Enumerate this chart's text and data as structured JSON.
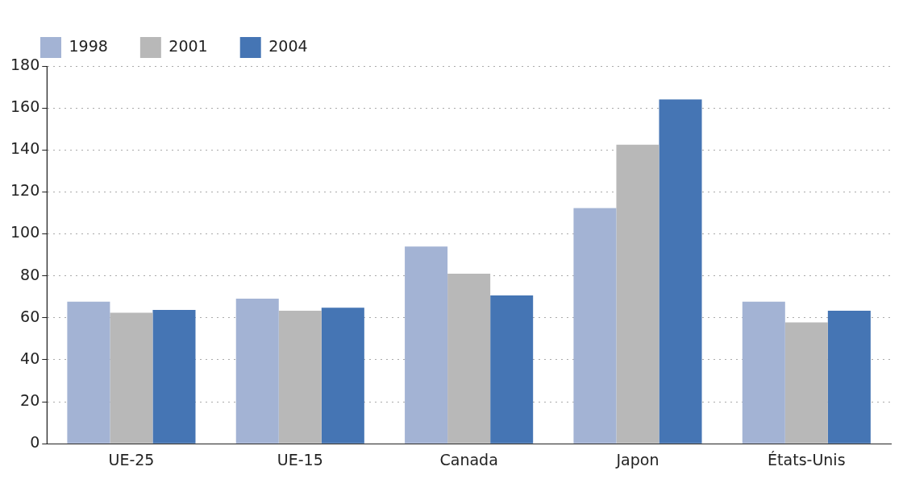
{
  "chart_data": {
    "type": "bar",
    "categories": [
      "UE-25",
      "UE-15",
      "Canada",
      "Japon",
      "États-Unis"
    ],
    "series": [
      {
        "name": "1998",
        "color": "#a3b3d4",
        "values": [
          67.7,
          69.1,
          94.0,
          112.3,
          67.7
        ]
      },
      {
        "name": "2001",
        "color": "#b8b8b8",
        "values": [
          62.4,
          63.4,
          81.0,
          142.5,
          57.8
        ]
      },
      {
        "name": "2004",
        "color": "#4575b4",
        "values": [
          63.8,
          64.8,
          70.7,
          164.1,
          63.4
        ]
      }
    ],
    "ylim": [
      0,
      180
    ],
    "yticks": [
      0,
      20,
      40,
      60,
      80,
      100,
      120,
      140,
      160,
      180
    ],
    "grid": "y",
    "legend": "top left"
  }
}
